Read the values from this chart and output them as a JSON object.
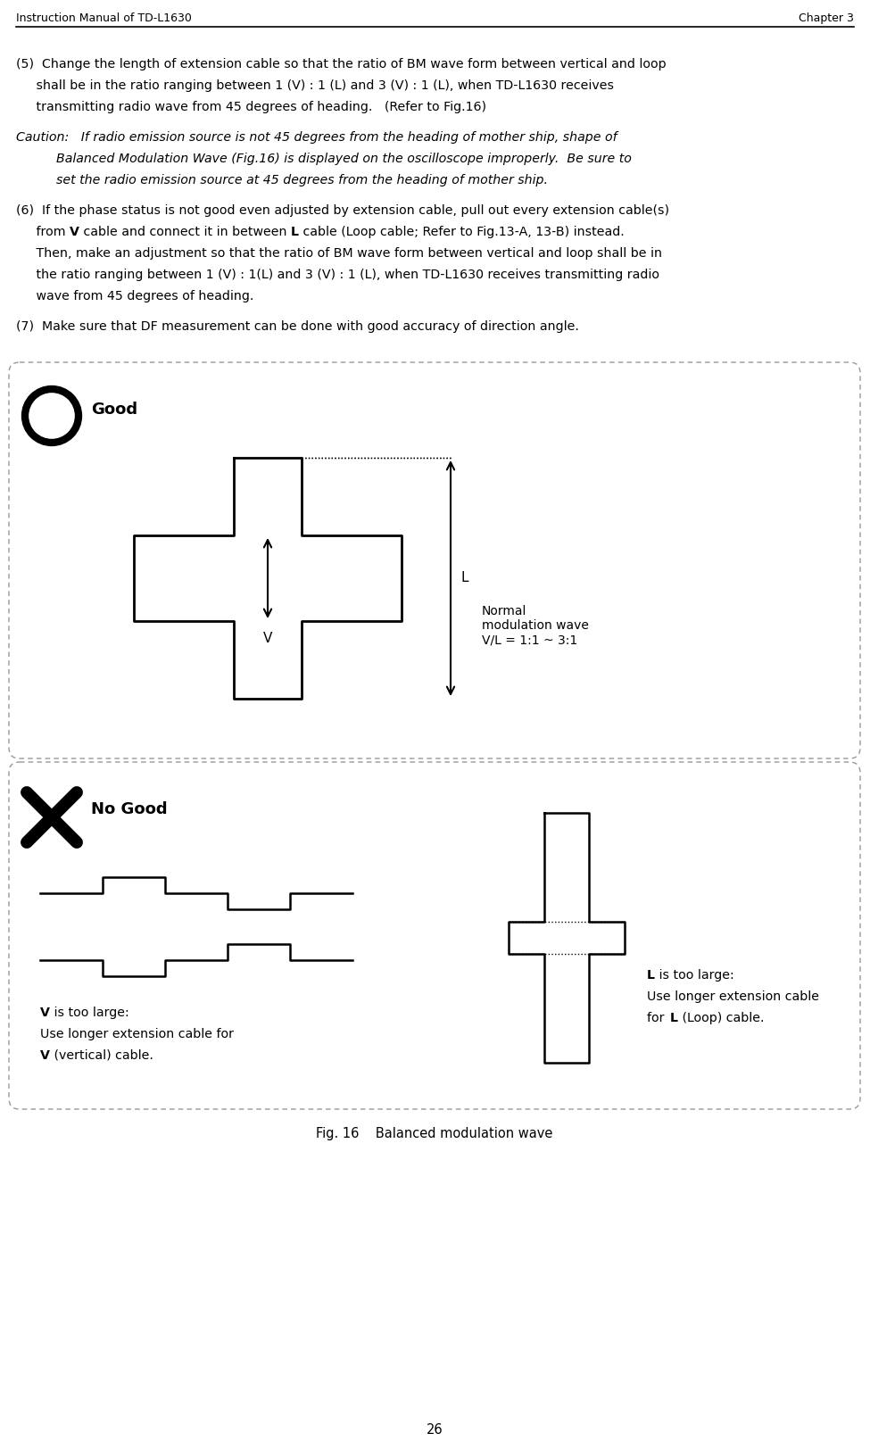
{
  "title_left": "Instruction Manual of TD-L1630",
  "title_right": "Chapter 3",
  "page_number": "26",
  "fig_caption": "Fig. 16    Balanced modulation wave",
  "box_good_label": "Good",
  "box_nogood_label": "No Good",
  "normal_wave_label": "Normal\nmodulation wave\nV/L = 1:1 ~ 3:1",
  "v_too_large_label1": "V is too large:",
  "v_too_large_label2": "Use longer extension cable for",
  "v_too_large_label3": "V (vertical) cable.",
  "l_too_large_label1": "L is too large:",
  "l_too_large_label2": "Use longer extension cable",
  "l_too_large_label3": "for L (Loop) cable.",
  "bg_color": "#ffffff",
  "box_border_color": "#999999"
}
